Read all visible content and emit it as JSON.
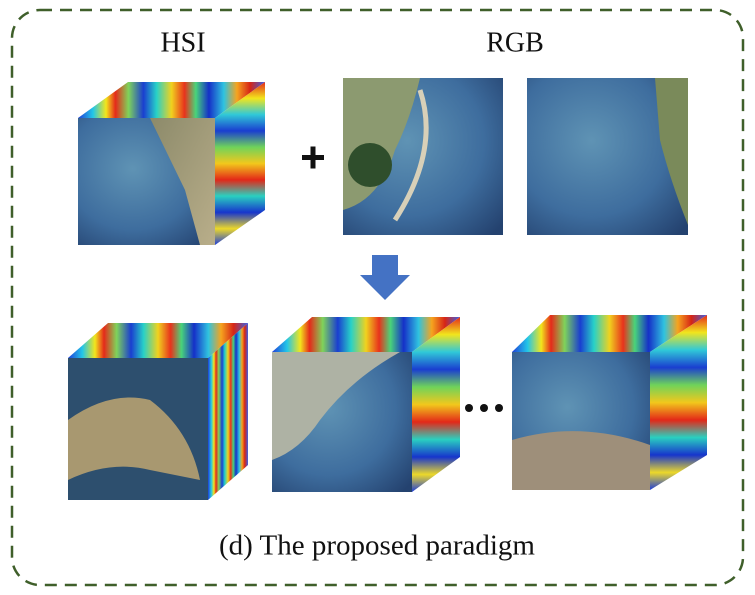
{
  "labels": {
    "hsi": "HSI",
    "rgb": "RGB"
  },
  "caption": "(d) The proposed paradigm"
}
